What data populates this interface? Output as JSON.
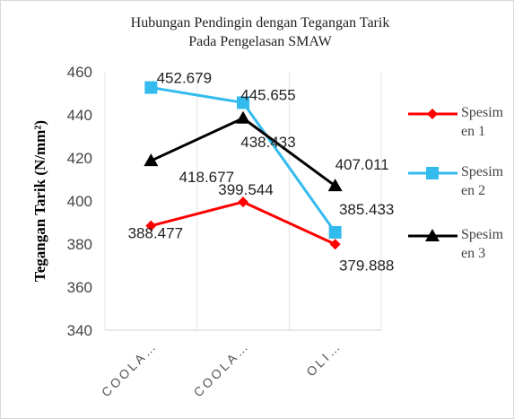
{
  "chart_data": {
    "type": "line",
    "title": "Hubungan Pendingin dengan Tegangan Tarik",
    "subtitle": "Pada Pengelasan SMAW",
    "y_label": "Tegangan Tarik (N/mm²)",
    "categories": [
      "COOLA…",
      "COOLA…",
      "OLI…"
    ],
    "series": [
      {
        "name": "Spesimen 1",
        "color": "#ff0000",
        "marker": "diamond",
        "values": [
          388.477,
          399.544,
          379.888
        ]
      },
      {
        "name": "Spesimen 2",
        "color": "#33bbee",
        "marker": "square",
        "values": [
          452.679,
          445.655,
          385.433
        ]
      },
      {
        "name": "Spesimen 3",
        "color": "#000000",
        "marker": "triangle",
        "values": [
          418.677,
          438.433,
          407.011
        ]
      }
    ],
    "ylim": [
      340,
      460
    ],
    "yticks": [
      340,
      360,
      380,
      400,
      420,
      440,
      460
    ],
    "grid": "vertical",
    "legend": "right"
  }
}
